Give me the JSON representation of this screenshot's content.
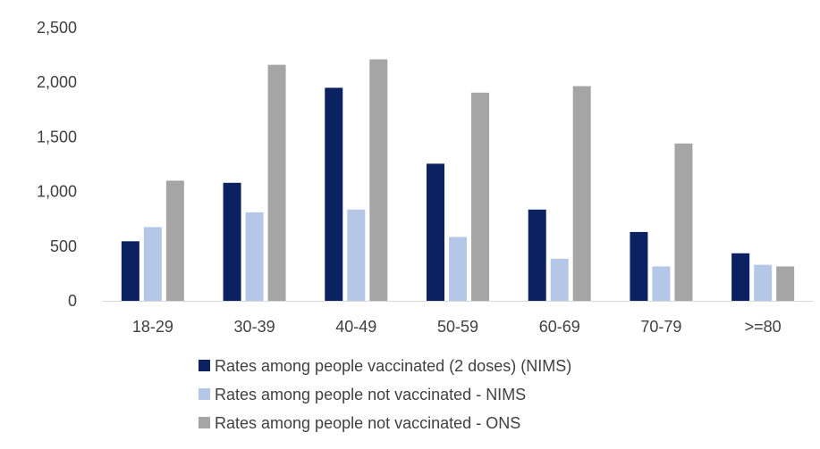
{
  "chart_data": {
    "type": "bar",
    "title": "",
    "xlabel": "",
    "ylabel": "",
    "categories": [
      "18-29",
      "30-39",
      "40-49",
      "50-59",
      "60-69",
      "70-79",
      ">=80"
    ],
    "ylim": [
      0,
      2500
    ],
    "yticks": [
      0,
      500,
      1000,
      1500,
      2000,
      2500
    ],
    "ytick_labels": [
      "0",
      "500",
      "1,000",
      "1,500",
      "2,000",
      "2,500"
    ],
    "grid": false,
    "legend_position": "bottom",
    "series": [
      {
        "name": "Rates among people vaccinated (2 doses) (NIMS)",
        "color": "#0b2162",
        "values": [
          545,
          1080,
          1950,
          1255,
          835,
          630,
          435
        ]
      },
      {
        "name": "Rates among people not vaccinated - NIMS",
        "color": "#b4c7e7",
        "values": [
          675,
          810,
          835,
          585,
          385,
          315,
          330
        ]
      },
      {
        "name": "Rates among people not vaccinated - ONS",
        "color": "#a5a5a5",
        "values": [
          1100,
          2160,
          2210,
          1905,
          1965,
          1440,
          315
        ]
      }
    ]
  }
}
